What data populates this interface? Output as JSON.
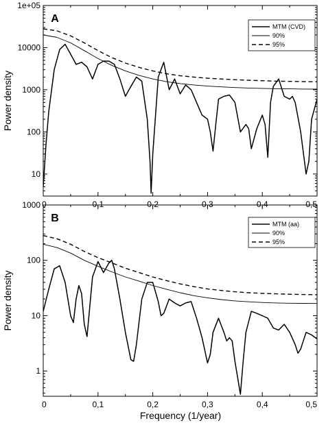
{
  "chart_data": [
    {
      "type": "line",
      "panel_label": "A",
      "xlabel": "",
      "ylabel": "Power density",
      "xlim": [
        0,
        0.5
      ],
      "ylim": [
        3,
        100000
      ],
      "yscale": "log",
      "x_ticks": [
        "0",
        "0,1",
        "0,2",
        "0,3",
        "0,4",
        "0,5"
      ],
      "y_ticks": [
        "10",
        "100",
        "1000",
        "10000",
        "1e+05"
      ],
      "y_tick_values": [
        10,
        100,
        1000,
        10000,
        100000
      ],
      "legend_position": "top-right",
      "grid": false,
      "series": [
        {
          "name": "MTM (CVD)",
          "style": "solid-thick",
          "x": [
            0,
            0.005,
            0.01,
            0.02,
            0.03,
            0.04,
            0.05,
            0.06,
            0.07,
            0.08,
            0.09,
            0.1,
            0.11,
            0.12,
            0.13,
            0.14,
            0.15,
            0.16,
            0.17,
            0.18,
            0.19,
            0.195,
            0.197,
            0.2,
            0.21,
            0.22,
            0.23,
            0.24,
            0.25,
            0.26,
            0.27,
            0.28,
            0.29,
            0.3,
            0.305,
            0.31,
            0.315,
            0.32,
            0.33,
            0.34,
            0.35,
            0.36,
            0.37,
            0.375,
            0.38,
            0.39,
            0.4,
            0.405,
            0.41,
            0.415,
            0.42,
            0.43,
            0.44,
            0.45,
            0.455,
            0.46,
            0.47,
            0.48,
            0.485,
            0.49,
            0.5
          ],
          "values": [
            5,
            50,
            300,
            3000,
            9000,
            12000,
            7000,
            4000,
            4500,
            3500,
            1800,
            4000,
            4800,
            4800,
            4000,
            1800,
            700,
            1200,
            2000,
            1600,
            200,
            20,
            3.5,
            30,
            2000,
            4500,
            1000,
            1800,
            800,
            1300,
            1000,
            500,
            250,
            200,
            100,
            35,
            150,
            600,
            700,
            750,
            500,
            100,
            150,
            120,
            40,
            120,
            250,
            150,
            25,
            500,
            1200,
            1800,
            700,
            600,
            700,
            500,
            100,
            10,
            20,
            200,
            600
          ]
        },
        {
          "name": "90%",
          "style": "solid-thin",
          "x": [
            0,
            0.025,
            0.05,
            0.075,
            0.1,
            0.125,
            0.15,
            0.175,
            0.2,
            0.225,
            0.25,
            0.275,
            0.3,
            0.325,
            0.35,
            0.375,
            0.4,
            0.425,
            0.45,
            0.475,
            0.5
          ],
          "values": [
            20000,
            17500,
            13000,
            8500,
            5500,
            3800,
            2800,
            2200,
            1800,
            1550,
            1400,
            1300,
            1220,
            1170,
            1130,
            1100,
            1080,
            1060,
            1050,
            1040,
            1035
          ]
        },
        {
          "name": "95%",
          "style": "dashed",
          "x": [
            0,
            0.025,
            0.05,
            0.075,
            0.1,
            0.125,
            0.15,
            0.175,
            0.2,
            0.225,
            0.25,
            0.275,
            0.3,
            0.325,
            0.35,
            0.375,
            0.4,
            0.425,
            0.45,
            0.475,
            0.5
          ],
          "values": [
            28000,
            25000,
            19000,
            13000,
            8500,
            5800,
            4300,
            3400,
            2800,
            2400,
            2150,
            2000,
            1880,
            1800,
            1730,
            1680,
            1640,
            1600,
            1580,
            1560,
            1550
          ]
        }
      ]
    },
    {
      "type": "line",
      "panel_label": "B",
      "xlabel": "Frequency (1/year)",
      "ylabel": "Power density",
      "xlim": [
        0,
        0.5
      ],
      "ylim": [
        0.35,
        1000
      ],
      "yscale": "log",
      "x_ticks": [
        "0",
        "0,1",
        "0,2",
        "0,3",
        "0,4",
        "0,5"
      ],
      "y_ticks": [
        "1",
        "10",
        "100",
        "1000"
      ],
      "y_tick_values": [
        1,
        10,
        100,
        1000
      ],
      "legend_position": "top-right",
      "grid": false,
      "series": [
        {
          "name": "MTM (aa)",
          "style": "solid-thick",
          "x": [
            0,
            0.01,
            0.02,
            0.03,
            0.04,
            0.05,
            0.055,
            0.06,
            0.065,
            0.07,
            0.075,
            0.08,
            0.09,
            0.1,
            0.11,
            0.12,
            0.125,
            0.13,
            0.14,
            0.15,
            0.16,
            0.165,
            0.17,
            0.18,
            0.19,
            0.2,
            0.21,
            0.215,
            0.22,
            0.23,
            0.24,
            0.25,
            0.26,
            0.27,
            0.28,
            0.29,
            0.3,
            0.305,
            0.31,
            0.32,
            0.33,
            0.335,
            0.34,
            0.345,
            0.35,
            0.36,
            0.365,
            0.37,
            0.38,
            0.39,
            0.4,
            0.41,
            0.42,
            0.43,
            0.44,
            0.45,
            0.46,
            0.465,
            0.47,
            0.48,
            0.49,
            0.5
          ],
          "values": [
            12,
            30,
            70,
            80,
            40,
            10,
            7.5,
            20,
            35,
            25,
            7,
            4.2,
            50,
            95,
            60,
            90,
            100,
            70,
            20,
            5,
            1.6,
            1.5,
            3,
            20,
            40,
            40,
            18,
            10,
            11,
            20,
            17,
            15,
            17,
            18,
            9,
            4,
            1.4,
            2,
            5,
            9,
            5,
            3.5,
            4,
            3.5,
            1.5,
            0.38,
            1.5,
            5,
            12,
            11,
            10,
            9,
            6,
            5.5,
            7,
            5,
            3,
            2.1,
            2.5,
            5,
            4.5,
            3.8
          ]
        },
        {
          "name": "90%",
          "style": "solid-thin",
          "x": [
            0,
            0.025,
            0.05,
            0.075,
            0.1,
            0.125,
            0.15,
            0.175,
            0.2,
            0.225,
            0.25,
            0.275,
            0.3,
            0.325,
            0.35,
            0.375,
            0.4,
            0.425,
            0.45,
            0.475,
            0.5
          ],
          "values": [
            195,
            170,
            135,
            100,
            78,
            62,
            50,
            42,
            35,
            30,
            26,
            23,
            21,
            19.5,
            18.5,
            17.8,
            17.3,
            17,
            16.8,
            16.7,
            16.6
          ]
        },
        {
          "name": "95%",
          "style": "dashed",
          "x": [
            0,
            0.025,
            0.05,
            0.075,
            0.1,
            0.125,
            0.15,
            0.175,
            0.2,
            0.225,
            0.25,
            0.275,
            0.3,
            0.325,
            0.35,
            0.375,
            0.4,
            0.425,
            0.45,
            0.475,
            0.5
          ],
          "values": [
            280,
            245,
            195,
            145,
            112,
            90,
            72,
            60,
            50,
            43,
            37.5,
            33.5,
            30.5,
            28.5,
            27,
            26,
            25.3,
            24.8,
            24.4,
            24.1,
            23.9
          ]
        }
      ]
    }
  ]
}
